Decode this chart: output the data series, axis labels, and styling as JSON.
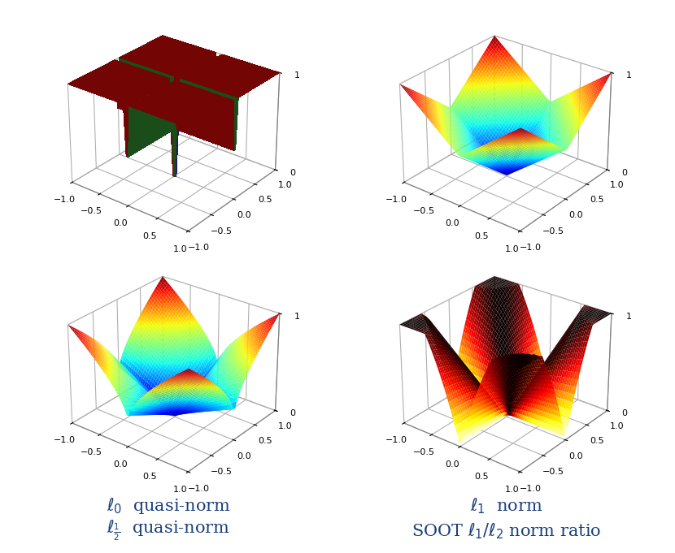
{
  "labels": [
    "$\\ell_0$  quasi-norm",
    "$\\ell_1$  norm",
    "$\\ell_{\\frac{1}{2}}$  quasi-norm",
    "SOOT $\\ell_1/\\ell_2$ norm ratio"
  ],
  "elev": 28,
  "azim": -52,
  "grid_range": [
    -1,
    1
  ],
  "n_points": 60,
  "background_color": "#ffffff",
  "label_color": "#1a3f7a",
  "label_fontsize": 15,
  "tick_fontsize": 8,
  "colormap": "jet"
}
